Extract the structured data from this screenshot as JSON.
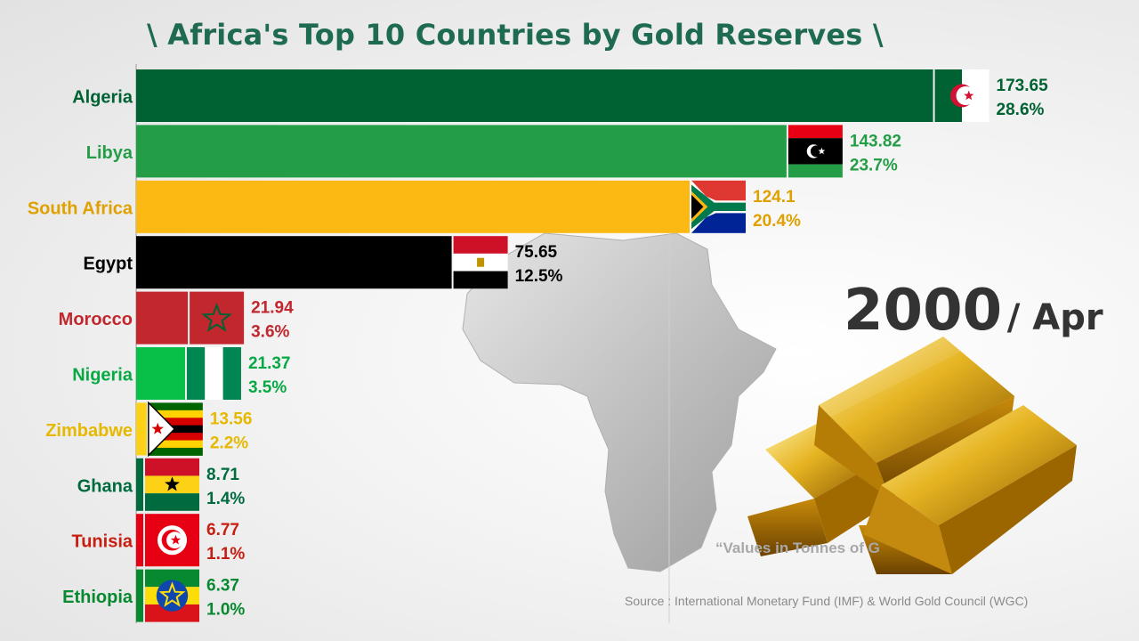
{
  "title": "\\ Africa's Top 10 Countries by Gold Reserves \\",
  "period": {
    "year": "2000",
    "separator": "/",
    "month": "Apr"
  },
  "note": "“Values in Tonnes of G",
  "source": "Source : International Monetary Fund (IMF) & World Gold Council (WGC)",
  "chart_data": {
    "type": "bar",
    "orientation": "horizontal",
    "title": "\\ Africa's Top 10 Countries by Gold Reserves \\",
    "unit": "Tonnes",
    "categories": [
      "Algeria",
      "Libya",
      "South Africa",
      "Egypt",
      "Morocco",
      "Nigeria",
      "Zimbabwe",
      "Ghana",
      "Tunisia",
      "Ethiopia"
    ],
    "values": [
      173.65,
      143.82,
      124.1,
      75.65,
      21.94,
      21.37,
      13.56,
      8.71,
      6.77,
      6.37
    ],
    "shares": [
      "28.6%",
      "23.7%",
      "20.4%",
      "12.5%",
      "3.6%",
      "3.5%",
      "2.2%",
      "1.4%",
      "1.1%",
      "1.0%"
    ],
    "value_labels": [
      "173.65",
      "143.82",
      "124.1",
      "75.65",
      "21.94",
      "21.37",
      "13.56",
      "8.71",
      "6.77",
      "6.37"
    ],
    "bar_colors": [
      "#006233",
      "#239e46",
      "#fdb913",
      "#000000",
      "#c1272d",
      "#08c047",
      "#fcd116",
      "#006b3f",
      "#e70013",
      "#078930"
    ],
    "label_colors": [
      "#006233",
      "#239e46",
      "#e0a100",
      "#000000",
      "#c1272d",
      "#08a845",
      "#e6b800",
      "#006b3f",
      "#c81d11",
      "#078930"
    ],
    "flags": [
      "algeria-flag",
      "libya-flag",
      "south-africa-flag",
      "egypt-flag",
      "morocco-flag",
      "nigeria-flag",
      "zimbabwe-flag",
      "ghana-flag",
      "tunisia-flag",
      "ethiopia-flag"
    ]
  }
}
